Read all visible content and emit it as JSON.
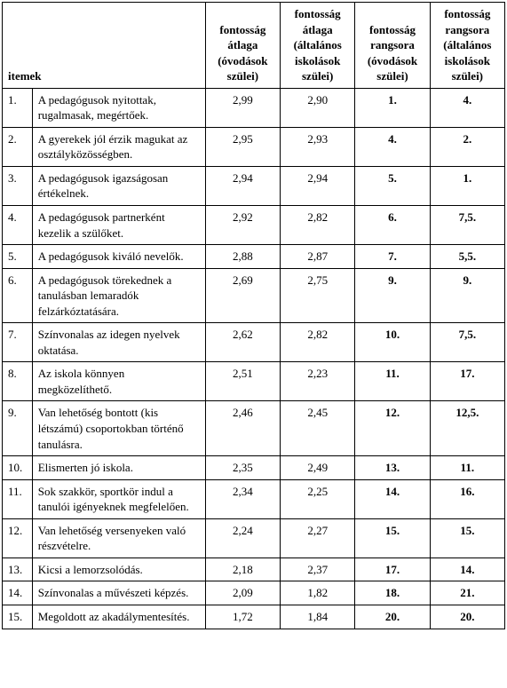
{
  "table": {
    "columns": {
      "num_header": "",
      "item_header": "itemek",
      "c1": "fontosság átlaga (óvodások szülei)",
      "c2": "fontosság átlaga (általános iskolások szülei)",
      "c3": "fontosság rangsora (óvodások szülei)",
      "c4": "fontosság rangsora (általános iskolások szülei)"
    },
    "rows": [
      {
        "n": "1.",
        "item": "A pedagógusok nyitottak, rugalmasak, megértőek.",
        "a": "2,99",
        "b": "2,90",
        "r1": "1.",
        "r2": "4."
      },
      {
        "n": "2.",
        "item": "A gyerekek jól érzik magukat az osztályközösségben.",
        "a": "2,95",
        "b": "2,93",
        "r1": "4.",
        "r2": "2."
      },
      {
        "n": "3.",
        "item": "A pedagógusok igazságo­san értékelnek.",
        "a": "2,94",
        "b": "2,94",
        "r1": "5.",
        "r2": "1."
      },
      {
        "n": "4.",
        "item": "A pedagógusok partner­ként kezelik a szülőket.",
        "a": "2,92",
        "b": "2,82",
        "r1": "6.",
        "r2": "7,5."
      },
      {
        "n": "5.",
        "item": "A pedagógusok kiváló nevelők.",
        "a": "2,88",
        "b": "2,87",
        "r1": "7.",
        "r2": "5,5."
      },
      {
        "n": "6.",
        "item": "A pedagógusok töreked­nek a tanulásban lemara­dók felzárkóztatására.",
        "a": "2,69",
        "b": "2,75",
        "r1": "9.",
        "r2": "9."
      },
      {
        "n": "7.",
        "item": "Színvonalas az idegen nyelvek oktatása.",
        "a": "2,62",
        "b": "2,82",
        "r1": "10.",
        "r2": "7,5."
      },
      {
        "n": "8.",
        "item": "Az iskola könnyen megközelíthető.",
        "a": "2,51",
        "b": "2,23",
        "r1": "11.",
        "r2": "17."
      },
      {
        "n": "9.",
        "item": "Van lehetőség bontott (kis létszámú) csoportokban történő tanulásra.",
        "a": "2,46",
        "b": "2,45",
        "r1": "12.",
        "r2": "12,5."
      },
      {
        "n": "10.",
        "item": "Elismerten jó iskola.",
        "a": "2,35",
        "b": "2,49",
        "r1": "13.",
        "r2": "11."
      },
      {
        "n": "11.",
        "item": "Sok szakkör, sportkör indul a tanulói igényeknek megfelelően.",
        "a": "2,34",
        "b": "2,25",
        "r1": "14.",
        "r2": "16."
      },
      {
        "n": "12.",
        "item": "Van lehetőség versenyeken való részvételre.",
        "a": "2,24",
        "b": "2,27",
        "r1": "15.",
        "r2": "15."
      },
      {
        "n": "13.",
        "item": "Kicsi a lemorzsolódás.",
        "a": "2,18",
        "b": "2,37",
        "r1": "17.",
        "r2": "14."
      },
      {
        "n": "14.",
        "item": "Színvonalas a művészeti képzés.",
        "a": "2,09",
        "b": "1,82",
        "r1": "18.",
        "r2": "21."
      },
      {
        "n": "15.",
        "item": "Megoldott az akadálymentesítés.",
        "a": "1,72",
        "b": "1,84",
        "r1": "20.",
        "r2": "20."
      }
    ]
  }
}
